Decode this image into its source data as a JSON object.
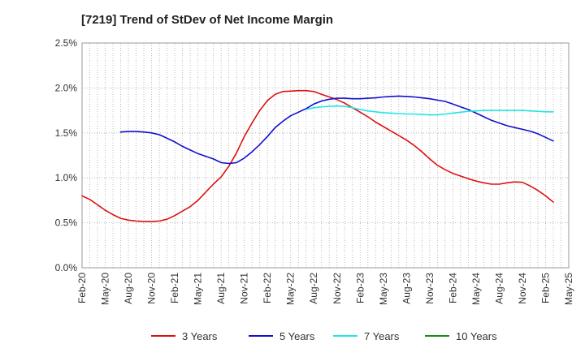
{
  "chart_data": {
    "type": "line",
    "title": "[7219]  Trend of StDev of Net Income Margin",
    "xlabel": "",
    "ylabel": "",
    "x_ticks": [
      "Feb-20",
      "May-20",
      "Aug-20",
      "Nov-20",
      "Feb-21",
      "May-21",
      "Aug-21",
      "Nov-21",
      "Feb-22",
      "May-22",
      "Aug-22",
      "Nov-22",
      "Feb-23",
      "May-23",
      "Aug-23",
      "Nov-23",
      "Feb-24",
      "May-24",
      "Aug-24",
      "Nov-24",
      "Feb-25",
      "May-25"
    ],
    "y_ticks": [
      "0.0%",
      "0.5%",
      "1.0%",
      "1.5%",
      "2.0%",
      "2.5%"
    ],
    "ylim": [
      0,
      2.5
    ],
    "xlim": [
      "Feb-20",
      "May-25"
    ],
    "grid": true,
    "legend_position": "bottom",
    "series": [
      {
        "name": "3 Years",
        "color": "#dd1111",
        "points": [
          [
            "Feb-20",
            0.8
          ],
          [
            "Mar-20",
            0.76
          ],
          [
            "Apr-20",
            0.7
          ],
          [
            "May-20",
            0.64
          ],
          [
            "Jun-20",
            0.59
          ],
          [
            "Jul-20",
            0.55
          ],
          [
            "Aug-20",
            0.53
          ],
          [
            "Sep-20",
            0.52
          ],
          [
            "Oct-20",
            0.515
          ],
          [
            "Nov-20",
            0.515
          ],
          [
            "Dec-20",
            0.52
          ],
          [
            "Jan-21",
            0.54
          ],
          [
            "Feb-21",
            0.58
          ],
          [
            "Mar-21",
            0.63
          ],
          [
            "Apr-21",
            0.68
          ],
          [
            "May-21",
            0.75
          ],
          [
            "Jun-21",
            0.84
          ],
          [
            "Jul-21",
            0.93
          ],
          [
            "Aug-21",
            1.01
          ],
          [
            "Sep-21",
            1.13
          ],
          [
            "Oct-21",
            1.28
          ],
          [
            "Nov-21",
            1.46
          ],
          [
            "Dec-21",
            1.61
          ],
          [
            "Jan-22",
            1.75
          ],
          [
            "Feb-22",
            1.86
          ],
          [
            "Mar-22",
            1.93
          ],
          [
            "Apr-22",
            1.96
          ],
          [
            "May-22",
            1.965
          ],
          [
            "Jun-22",
            1.97
          ],
          [
            "Jul-22",
            1.97
          ],
          [
            "Aug-22",
            1.96
          ],
          [
            "Sep-22",
            1.93
          ],
          [
            "Oct-22",
            1.9
          ],
          [
            "Nov-22",
            1.87
          ],
          [
            "Dec-22",
            1.83
          ],
          [
            "Jan-23",
            1.78
          ],
          [
            "Feb-23",
            1.73
          ],
          [
            "Mar-23",
            1.68
          ],
          [
            "Apr-23",
            1.62
          ],
          [
            "May-23",
            1.57
          ],
          [
            "Jun-23",
            1.52
          ],
          [
            "Jul-23",
            1.47
          ],
          [
            "Aug-23",
            1.42
          ],
          [
            "Sep-23",
            1.36
          ],
          [
            "Oct-23",
            1.29
          ],
          [
            "Nov-23",
            1.21
          ],
          [
            "Dec-23",
            1.14
          ],
          [
            "Jan-24",
            1.09
          ],
          [
            "Feb-24",
            1.05
          ],
          [
            "Mar-24",
            1.02
          ],
          [
            "Apr-24",
            0.99
          ],
          [
            "May-24",
            0.965
          ],
          [
            "Jun-24",
            0.945
          ],
          [
            "Jul-24",
            0.93
          ],
          [
            "Aug-24",
            0.93
          ],
          [
            "Sep-24",
            0.945
          ],
          [
            "Oct-24",
            0.955
          ],
          [
            "Nov-24",
            0.95
          ],
          [
            "Dec-24",
            0.91
          ],
          [
            "Jan-25",
            0.86
          ],
          [
            "Feb-25",
            0.8
          ],
          [
            "Mar-25",
            0.73
          ]
        ]
      },
      {
        "name": "5 Years",
        "color": "#1111cc",
        "points": [
          [
            "Jul-20",
            1.51
          ],
          [
            "Aug-20",
            1.515
          ],
          [
            "Sep-20",
            1.515
          ],
          [
            "Oct-20",
            1.51
          ],
          [
            "Nov-20",
            1.5
          ],
          [
            "Dec-20",
            1.48
          ],
          [
            "Jan-21",
            1.44
          ],
          [
            "Feb-21",
            1.4
          ],
          [
            "Mar-21",
            1.35
          ],
          [
            "Apr-21",
            1.31
          ],
          [
            "May-21",
            1.27
          ],
          [
            "Jun-21",
            1.24
          ],
          [
            "Jul-21",
            1.21
          ],
          [
            "Aug-21",
            1.17
          ],
          [
            "Sep-21",
            1.16
          ],
          [
            "Oct-21",
            1.17
          ],
          [
            "Nov-21",
            1.22
          ],
          [
            "Dec-21",
            1.29
          ],
          [
            "Jan-22",
            1.37
          ],
          [
            "Feb-22",
            1.46
          ],
          [
            "Mar-22",
            1.56
          ],
          [
            "Apr-22",
            1.63
          ],
          [
            "May-22",
            1.69
          ],
          [
            "Jun-22",
            1.73
          ],
          [
            "Jul-22",
            1.77
          ],
          [
            "Aug-22",
            1.82
          ],
          [
            "Sep-22",
            1.855
          ],
          [
            "Oct-22",
            1.875
          ],
          [
            "Nov-22",
            1.885
          ],
          [
            "Dec-22",
            1.885
          ],
          [
            "Jan-23",
            1.88
          ],
          [
            "Feb-23",
            1.88
          ],
          [
            "Mar-23",
            1.885
          ],
          [
            "Apr-23",
            1.89
          ],
          [
            "May-23",
            1.9
          ],
          [
            "Jun-23",
            1.905
          ],
          [
            "Jul-23",
            1.91
          ],
          [
            "Aug-23",
            1.905
          ],
          [
            "Sep-23",
            1.9
          ],
          [
            "Oct-23",
            1.89
          ],
          [
            "Nov-23",
            1.88
          ],
          [
            "Dec-23",
            1.865
          ],
          [
            "Jan-24",
            1.85
          ],
          [
            "Feb-24",
            1.82
          ],
          [
            "Mar-24",
            1.79
          ],
          [
            "Apr-24",
            1.76
          ],
          [
            "May-24",
            1.72
          ],
          [
            "Jun-24",
            1.68
          ],
          [
            "Jul-24",
            1.64
          ],
          [
            "Aug-24",
            1.61
          ],
          [
            "Sep-24",
            1.58
          ],
          [
            "Oct-24",
            1.56
          ],
          [
            "Nov-24",
            1.54
          ],
          [
            "Dec-24",
            1.52
          ],
          [
            "Jan-25",
            1.49
          ],
          [
            "Feb-25",
            1.45
          ],
          [
            "Mar-25",
            1.41
          ]
        ]
      },
      {
        "name": "7 Years",
        "color": "#22e5e5",
        "points": [
          [
            "Jul-22",
            1.76
          ],
          [
            "Aug-22",
            1.78
          ],
          [
            "Sep-22",
            1.79
          ],
          [
            "Oct-22",
            1.795
          ],
          [
            "Nov-22",
            1.8
          ],
          [
            "Dec-22",
            1.795
          ],
          [
            "Jan-23",
            1.78
          ],
          [
            "Feb-23",
            1.76
          ],
          [
            "Mar-23",
            1.745
          ],
          [
            "Apr-23",
            1.735
          ],
          [
            "May-23",
            1.725
          ],
          [
            "Jun-23",
            1.72
          ],
          [
            "Jul-23",
            1.715
          ],
          [
            "Aug-23",
            1.71
          ],
          [
            "Sep-23",
            1.71
          ],
          [
            "Oct-23",
            1.705
          ],
          [
            "Nov-23",
            1.7
          ],
          [
            "Dec-23",
            1.7
          ],
          [
            "Jan-24",
            1.71
          ],
          [
            "Feb-24",
            1.72
          ],
          [
            "Mar-24",
            1.73
          ],
          [
            "Apr-24",
            1.74
          ],
          [
            "May-24",
            1.745
          ],
          [
            "Jun-24",
            1.75
          ],
          [
            "Jul-24",
            1.75
          ],
          [
            "Aug-24",
            1.75
          ],
          [
            "Sep-24",
            1.75
          ],
          [
            "Oct-24",
            1.75
          ],
          [
            "Nov-24",
            1.75
          ],
          [
            "Dec-24",
            1.745
          ],
          [
            "Jan-25",
            1.74
          ],
          [
            "Feb-25",
            1.735
          ],
          [
            "Mar-25",
            1.735
          ]
        ]
      },
      {
        "name": "10 Years",
        "color": "#1a8a1a",
        "points": []
      }
    ]
  }
}
